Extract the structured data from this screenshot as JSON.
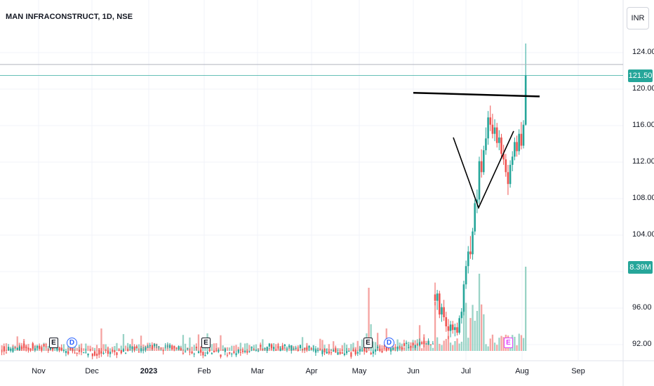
{
  "header": {
    "title": "MAN INFRACONSTRUCT, 1D, NSE",
    "currency": "INR"
  },
  "colors": {
    "up": "#26a69a",
    "down": "#ef5350",
    "up_volume": "#9ad3c6",
    "down_volume": "#f5a3a1",
    "grid": "#f0f3fa",
    "axis_text": "#131722",
    "drawing": "#000000",
    "earnings_future": "#e040fb",
    "dividend": "#2962ff"
  },
  "price_axis": {
    "ticks": [
      "124.00",
      "120.00",
      "116.00",
      "112.00",
      "108.00",
      "104.00",
      "96.00",
      "92.00"
    ]
  },
  "badges": {
    "last_price": "121.50",
    "last_volume": "8.39M"
  },
  "time_axis": [
    {
      "label": "Nov",
      "bold": false
    },
    {
      "label": "Dec",
      "bold": false
    },
    {
      "label": "2023",
      "bold": true
    },
    {
      "label": "Feb",
      "bold": false
    },
    {
      "label": "Mar",
      "bold": false
    },
    {
      "label": "Apr",
      "bold": false
    },
    {
      "label": "May",
      "bold": false
    },
    {
      "label": "Jun",
      "bold": false
    },
    {
      "label": "Jul",
      "bold": false
    },
    {
      "label": "Aug",
      "bold": false
    },
    {
      "label": "Sep",
      "bold": false
    }
  ],
  "events": [
    {
      "type": "earnings",
      "label": "E"
    },
    {
      "type": "dividend",
      "label": "D"
    },
    {
      "type": "earnings",
      "label": "E"
    },
    {
      "type": "earnings",
      "label": "E"
    },
    {
      "type": "dividend",
      "label": "D"
    },
    {
      "type": "earnings-future",
      "label": "E"
    }
  ],
  "chart_data": {
    "type": "candlestick",
    "title": "MAN INFRACONSTRUCT, 1D, NSE",
    "y_range": [
      90.5,
      125.5
    ],
    "grid": true,
    "ohlc_recent": [
      {
        "o": 97.5,
        "h": 98.8,
        "l": 96.3,
        "c": 96.8
      },
      {
        "o": 96.8,
        "h": 98.0,
        "l": 95.8,
        "c": 97.6
      },
      {
        "o": 97.6,
        "h": 97.9,
        "l": 94.9,
        "c": 95.3
      },
      {
        "o": 95.3,
        "h": 96.5,
        "l": 94.5,
        "c": 96.1
      },
      {
        "o": 96.1,
        "h": 96.9,
        "l": 94.6,
        "c": 95.0
      },
      {
        "o": 95.0,
        "h": 95.6,
        "l": 93.4,
        "c": 94.0
      },
      {
        "o": 94.0,
        "h": 94.8,
        "l": 92.6,
        "c": 93.5
      },
      {
        "o": 93.5,
        "h": 94.6,
        "l": 92.8,
        "c": 94.2
      },
      {
        "o": 94.2,
        "h": 94.6,
        "l": 93.2,
        "c": 93.6
      },
      {
        "o": 93.6,
        "h": 94.3,
        "l": 92.9,
        "c": 93.9
      },
      {
        "o": 93.9,
        "h": 94.4,
        "l": 93.0,
        "c": 93.3
      },
      {
        "o": 93.3,
        "h": 95.2,
        "l": 93.1,
        "c": 94.9
      },
      {
        "o": 94.9,
        "h": 96.0,
        "l": 94.3,
        "c": 95.6
      },
      {
        "o": 95.6,
        "h": 99.0,
        "l": 95.2,
        "c": 98.6
      },
      {
        "o": 98.6,
        "h": 101.2,
        "l": 98.1,
        "c": 100.6
      },
      {
        "o": 100.6,
        "h": 102.8,
        "l": 99.8,
        "c": 102.2
      },
      {
        "o": 102.2,
        "h": 103.9,
        "l": 101.4,
        "c": 101.9
      },
      {
        "o": 101.9,
        "h": 104.8,
        "l": 101.3,
        "c": 104.4
      },
      {
        "o": 104.4,
        "h": 107.9,
        "l": 104.0,
        "c": 107.5
      },
      {
        "o": 107.5,
        "h": 109.0,
        "l": 106.4,
        "c": 107.9
      },
      {
        "o": 107.9,
        "h": 112.6,
        "l": 107.4,
        "c": 112.1
      },
      {
        "o": 112.1,
        "h": 113.4,
        "l": 110.3,
        "c": 110.9
      },
      {
        "o": 110.9,
        "h": 113.8,
        "l": 110.6,
        "c": 113.3
      },
      {
        "o": 113.3,
        "h": 115.8,
        "l": 112.8,
        "c": 114.6
      },
      {
        "o": 114.6,
        "h": 117.6,
        "l": 113.9,
        "c": 116.9
      },
      {
        "o": 116.9,
        "h": 118.2,
        "l": 115.4,
        "c": 116.1
      },
      {
        "o": 116.1,
        "h": 117.3,
        "l": 114.6,
        "c": 115.1
      },
      {
        "o": 115.1,
        "h": 116.7,
        "l": 114.3,
        "c": 115.8
      },
      {
        "o": 115.8,
        "h": 116.3,
        "l": 113.6,
        "c": 114.1
      },
      {
        "o": 114.1,
        "h": 115.5,
        "l": 113.3,
        "c": 114.7
      },
      {
        "o": 114.7,
        "h": 115.1,
        "l": 112.4,
        "c": 112.9
      },
      {
        "o": 112.9,
        "h": 113.9,
        "l": 111.7,
        "c": 112.3
      },
      {
        "o": 112.3,
        "h": 112.9,
        "l": 110.4,
        "c": 110.9
      },
      {
        "o": 110.9,
        "h": 111.7,
        "l": 108.4,
        "c": 109.6
      },
      {
        "o": 109.6,
        "h": 112.2,
        "l": 109.2,
        "c": 111.7
      },
      {
        "o": 111.7,
        "h": 113.2,
        "l": 111.0,
        "c": 112.6
      },
      {
        "o": 112.6,
        "h": 114.7,
        "l": 112.2,
        "c": 114.2
      },
      {
        "o": 114.2,
        "h": 114.9,
        "l": 112.6,
        "c": 113.2
      },
      {
        "o": 113.2,
        "h": 115.6,
        "l": 112.8,
        "c": 115.1
      },
      {
        "o": 115.1,
        "h": 116.4,
        "l": 113.4,
        "c": 113.8
      },
      {
        "o": 113.8,
        "h": 116.6,
        "l": 113.5,
        "c": 116.1
      },
      {
        "o": 116.1,
        "h": 125.0,
        "l": 116.0,
        "c": 121.5
      }
    ]
  }
}
